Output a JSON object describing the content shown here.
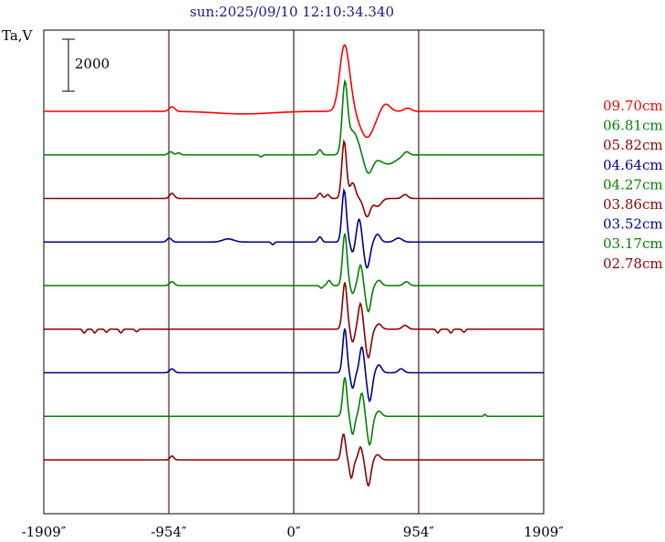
{
  "chart_data": {
    "type": "line",
    "title": "sun:2025/09/10 12:10:34.340",
    "ylabel": "Ta,V",
    "xunit": "″",
    "xlim": [
      -1909,
      1909
    ],
    "xticks": [
      -1909,
      -954,
      0,
      954,
      1909
    ],
    "xtick_labels": [
      "-1909″",
      "-954″",
      "0″",
      "954″",
      "1909″"
    ],
    "vlines": [
      -954,
      0,
      954
    ],
    "scale_bar": {
      "label": "2000",
      "value": 2000
    },
    "trace_offset": 2000,
    "colors": {
      "red": "#ff0000",
      "green": "#008000",
      "darkred": "#8b0000",
      "navy": "#00008b",
      "frame": "#000000",
      "vline": "#4a1a1a",
      "title": "#1a1a80"
    },
    "series": [
      {
        "name": "09.70cm",
        "color": "#ff0000",
        "baseline": 0,
        "features": [
          [
            -930,
            180,
            30
          ],
          [
            385,
            2400,
            50
          ],
          [
            430,
            400,
            45
          ],
          [
            560,
            -1000,
            75
          ],
          [
            700,
            300,
            50
          ],
          [
            870,
            120,
            40
          ],
          [
            -380,
            -100,
            300
          ]
        ]
      },
      {
        "name": "06.81cm",
        "color": "#008000",
        "baseline": 0,
        "features": [
          [
            -940,
            120,
            25
          ],
          [
            -880,
            80,
            20
          ],
          [
            200,
            200,
            20
          ],
          [
            390,
            2500,
            28
          ],
          [
            450,
            900,
            60
          ],
          [
            570,
            -700,
            45
          ],
          [
            720,
            -350,
            90
          ],
          [
            860,
            150,
            30
          ],
          [
            -250,
            -80,
            15
          ]
        ]
      },
      {
        "name": "05.82cm",
        "color": "#8b0000",
        "baseline": 0,
        "features": [
          [
            -930,
            200,
            25
          ],
          [
            200,
            200,
            22
          ],
          [
            260,
            150,
            20
          ],
          [
            385,
            2200,
            25
          ],
          [
            450,
            600,
            30
          ],
          [
            560,
            -700,
            35
          ],
          [
            640,
            -300,
            40
          ],
          [
            850,
            150,
            30
          ]
        ]
      },
      {
        "name": "04.64cm",
        "color": "#00008b",
        "baseline": 0,
        "features": [
          [
            -950,
            150,
            25
          ],
          [
            -500,
            120,
            60
          ],
          [
            -160,
            -100,
            15
          ],
          [
            200,
            200,
            20
          ],
          [
            385,
            2000,
            24
          ],
          [
            450,
            -400,
            20
          ],
          [
            500,
            900,
            25
          ],
          [
            560,
            -1000,
            30
          ],
          [
            640,
            300,
            30
          ],
          [
            800,
            150,
            40
          ]
        ]
      },
      {
        "name": "04.27cm",
        "color": "#008000",
        "baseline": 0,
        "features": [
          [
            -930,
            150,
            25
          ],
          [
            210,
            -100,
            15
          ],
          [
            270,
            200,
            20
          ],
          [
            390,
            2000,
            24
          ],
          [
            450,
            -300,
            20
          ],
          [
            510,
            800,
            24
          ],
          [
            570,
            -1000,
            28
          ],
          [
            650,
            200,
            30
          ],
          [
            860,
            150,
            30
          ]
        ]
      },
      {
        "name": "03.86cm",
        "color": "#8b0000",
        "baseline": 0,
        "features": [
          [
            -1600,
            -150,
            15
          ],
          [
            -1520,
            -150,
            15
          ],
          [
            -1430,
            -120,
            15
          ],
          [
            -1320,
            -150,
            15
          ],
          [
            -1200,
            -100,
            15
          ],
          [
            1100,
            -150,
            15
          ],
          [
            1200,
            -150,
            15
          ],
          [
            1300,
            -120,
            15
          ],
          [
            390,
            1800,
            24
          ],
          [
            450,
            -500,
            20
          ],
          [
            510,
            1000,
            24
          ],
          [
            570,
            -1100,
            28
          ],
          [
            650,
            200,
            30
          ],
          [
            850,
            150,
            30
          ]
        ]
      },
      {
        "name": "03.52cm",
        "color": "#00008b",
        "baseline": 0,
        "features": [
          [
            -930,
            150,
            25
          ],
          [
            390,
            1700,
            22
          ],
          [
            450,
            -600,
            20
          ],
          [
            520,
            1000,
            24
          ],
          [
            580,
            -1100,
            26
          ],
          [
            650,
            300,
            30
          ],
          [
            820,
            150,
            30
          ]
        ]
      },
      {
        "name": "03.17cm",
        "color": "#008000",
        "baseline": 0,
        "features": [
          [
            390,
            1500,
            22
          ],
          [
            450,
            -700,
            20
          ],
          [
            520,
            900,
            24
          ],
          [
            580,
            -1100,
            26
          ],
          [
            650,
            200,
            30
          ],
          [
            1460,
            80,
            10
          ]
        ]
      },
      {
        "name": "02.78cm",
        "color": "#8b0000",
        "baseline": 0,
        "features": [
          [
            -930,
            150,
            20
          ],
          [
            380,
            1000,
            22
          ],
          [
            440,
            -700,
            20
          ],
          [
            510,
            500,
            22
          ],
          [
            570,
            -1000,
            26
          ],
          [
            640,
            200,
            30
          ]
        ]
      }
    ]
  }
}
